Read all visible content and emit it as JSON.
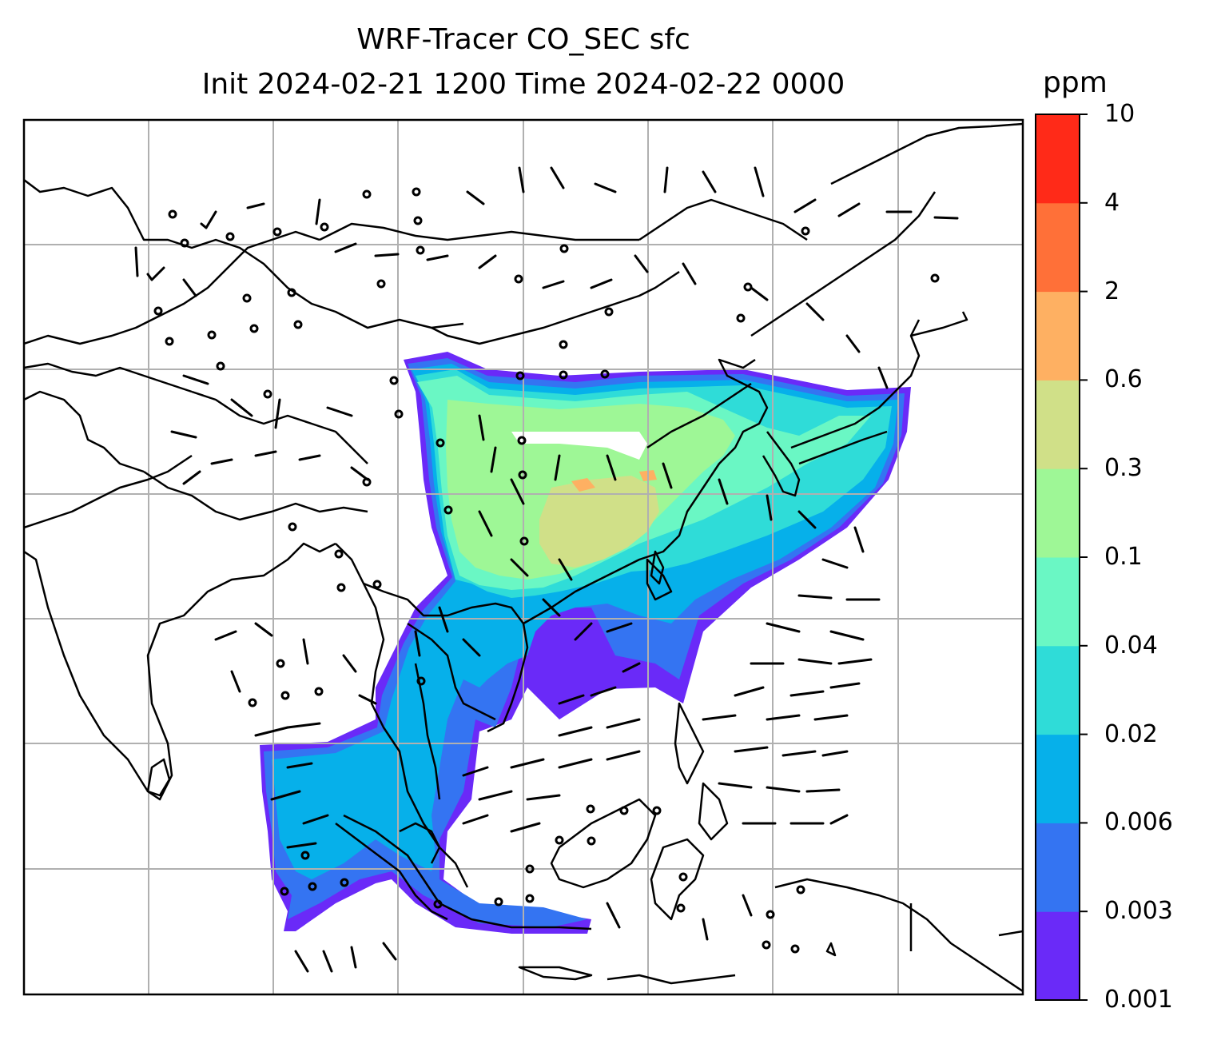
{
  "title": {
    "line1": "WRF-Tracer CO_SEC sfc",
    "line2": "Init 2024-02-21 1200 Time 2024-02-22 0000"
  },
  "colorbar": {
    "unit": "ppm",
    "levels": [
      "0.001",
      "0.003",
      "0.006",
      "0.02",
      "0.04",
      "0.1",
      "0.3",
      "0.6",
      "2",
      "4",
      "10"
    ],
    "colors": [
      "#6a2af8",
      "#3474f2",
      "#06b0ea",
      "#2fdcd8",
      "#6af7c4",
      "#9ef796",
      "#d0e088",
      "#feb062",
      "#ff7038",
      "#ff2a18"
    ]
  },
  "map": {
    "gridlines": true,
    "coastline_color": "#000000",
    "grid_color": "#b0b0b0"
  }
}
